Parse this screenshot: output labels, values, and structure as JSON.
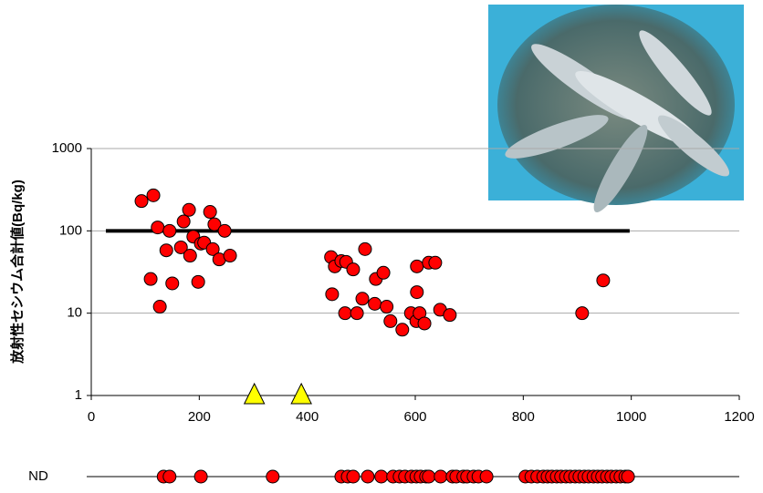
{
  "chart_data": {
    "type": "scatter",
    "y_label": "放射性セシウム合計値(Bq/kg)",
    "xlim": [
      0,
      1200
    ],
    "xticks": [
      0,
      200,
      400,
      600,
      800,
      1000,
      1200
    ],
    "ylim": [
      1,
      1000
    ],
    "yticks": [
      1,
      10,
      100,
      1000
    ],
    "log_y": true,
    "grid": true,
    "series": [
      {
        "marker": "circle",
        "color": "#ff0000",
        "x": [
          93,
          115,
          123,
          110,
          127,
          139,
          145,
          150,
          166,
          171,
          181,
          183,
          189,
          198,
          203,
          209,
          220,
          225,
          228,
          237,
          247,
          257,
          444,
          446,
          451,
          463,
          472,
          470,
          485,
          492,
          502,
          507,
          525,
          527,
          541,
          547,
          554,
          576,
          592,
          602,
          603,
          603,
          608,
          617,
          625,
          637,
          646,
          664,
          909,
          948
        ],
        "values": [
          230,
          270,
          110,
          26,
          12,
          58,
          100,
          23,
          63,
          130,
          180,
          50,
          85,
          24,
          70,
          72,
          170,
          60,
          120,
          45,
          100,
          50,
          48,
          17,
          37,
          43,
          42,
          10,
          34,
          10,
          15,
          60,
          13,
          26,
          31,
          12,
          8,
          6.3,
          10,
          8,
          37,
          18,
          10,
          7.5,
          41,
          41,
          11,
          9.5,
          10,
          25
        ]
      },
      {
        "marker": "triangle",
        "color": "#ffff00",
        "x": [
          302,
          389
        ],
        "values": [
          1,
          1
        ]
      }
    ],
    "threshold": {
      "color": "#000000",
      "x": [
        27,
        997
      ],
      "values": [
        100,
        100
      ]
    },
    "nd": {
      "label": "ND",
      "color": "#ff0000",
      "x": [
        134,
        145,
        203,
        336,
        463,
        475,
        485,
        512,
        537,
        559,
        571,
        581,
        593,
        602,
        610,
        620,
        625,
        647,
        669,
        676,
        689,
        696,
        708,
        717,
        732,
        804,
        815,
        826,
        837,
        845,
        853,
        862,
        870,
        879,
        887,
        896,
        904,
        913,
        921,
        930,
        938,
        946,
        955,
        963,
        972,
        980,
        989,
        994
      ]
    }
  }
}
